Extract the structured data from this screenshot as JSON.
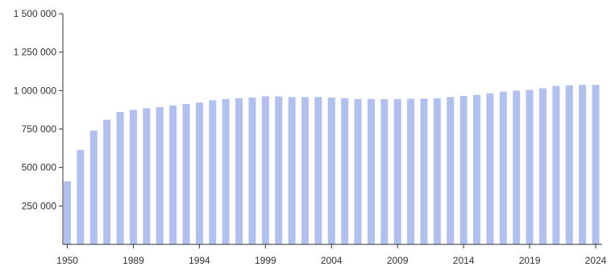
{
  "chart_data": {
    "type": "bar",
    "categories": [
      "1950",
      "1960",
      "1970",
      "1980",
      "1985",
      "1989",
      "1990",
      "1991",
      "1992",
      "1993",
      "1994",
      "1995",
      "1996",
      "1997",
      "1998",
      "1999",
      "2000",
      "2001",
      "2002",
      "2003",
      "2004",
      "2005",
      "2006",
      "2007",
      "2008",
      "2009",
      "2010",
      "2011",
      "2012",
      "2013",
      "2014",
      "2015",
      "2016",
      "2017",
      "2018",
      "2019",
      "2020",
      "2021",
      "2022",
      "2023",
      "2024"
    ],
    "values": [
      410000,
      615000,
      740000,
      810000,
      860000,
      875000,
      885000,
      893000,
      903000,
      913000,
      922000,
      937000,
      945000,
      950000,
      955000,
      963000,
      962000,
      958000,
      958000,
      958000,
      955000,
      950000,
      945000,
      945000,
      945000,
      945000,
      947000,
      948000,
      950000,
      958000,
      965000,
      972000,
      982000,
      993000,
      1000000,
      1005000,
      1015000,
      1030000,
      1035000,
      1037000,
      1037000
    ],
    "x_tick_labels": [
      "1950",
      "1989",
      "1994",
      "1999",
      "2004",
      "2009",
      "2014",
      "2019",
      "2024"
    ],
    "y_ticks": [
      250000,
      500000,
      750000,
      1000000,
      1250000,
      1500000
    ],
    "y_tick_labels": [
      "250 000",
      "500 000",
      "750 000",
      "1 000 000",
      "1 250 000",
      "1 500 000"
    ],
    "ylim": [
      0,
      1500000
    ],
    "bar_color": "#b1c0ee",
    "axis_color": "#333333",
    "grid": false,
    "legend": "none"
  }
}
